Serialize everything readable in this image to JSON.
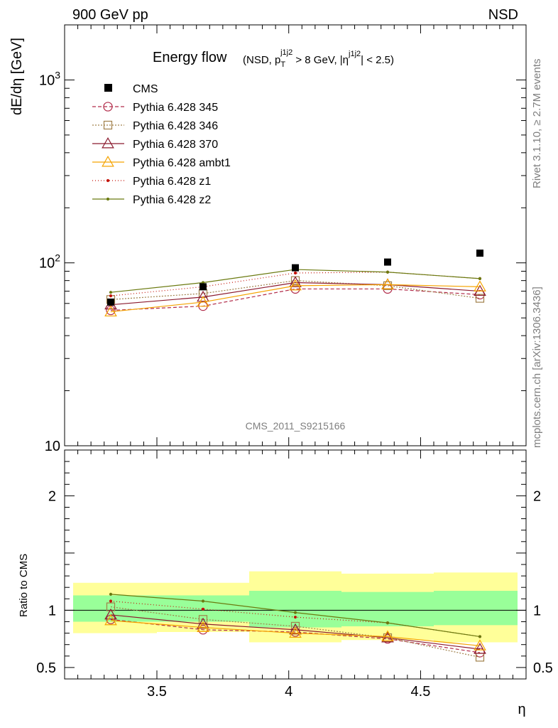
{
  "header": {
    "left": "900 GeV pp",
    "right": "NSD"
  },
  "side_labels": {
    "rivet": "Rivet 3.1.10, ≥ 2.7M events",
    "mcplots": "mcplots.cern.ch [arXiv:1306.3436]"
  },
  "watermark": "CMS_2011_S9215166",
  "chart_data": [
    {
      "type": "line",
      "title_main": "Energy flow",
      "title_sub": "(NSD, p_T^j1j2 > 8 GeV, |η^j1j2| < 2.5)",
      "ylabel": "dE/dη [GeV]",
      "yscale": "log",
      "ylim": [
        10,
        2000
      ],
      "xlim": [
        3.15,
        4.9
      ],
      "y_ticks": [
        {
          "value": 10,
          "label": "10"
        },
        {
          "value": 100,
          "label": "10^2"
        },
        {
          "value": 1000,
          "label": "10^3"
        }
      ],
      "x": [
        3.325,
        3.675,
        4.025,
        4.375,
        4.725
      ],
      "x_bin_edges": [
        3.15,
        3.5,
        3.85,
        4.2,
        4.55,
        4.9
      ],
      "data": {
        "name": "CMS",
        "values": [
          61,
          74,
          94,
          101,
          113
        ]
      },
      "series": [
        {
          "name": "Pythia 6.428 345",
          "values": [
            55,
            58,
            72,
            72,
            67
          ],
          "color": "#b22c4a",
          "dash": "5,3",
          "marker": "circle"
        },
        {
          "name": "Pythia 6.428 346",
          "values": [
            63,
            68,
            80,
            75,
            64
          ],
          "color": "#a0804a",
          "dash": "2,2",
          "marker": "square"
        },
        {
          "name": "Pythia 6.428 370",
          "values": [
            59,
            65,
            78,
            76,
            70
          ],
          "color": "#8b1a2e",
          "dash": "",
          "marker": "triangle"
        },
        {
          "name": "Pythia 6.428 ambt1",
          "values": [
            54,
            61,
            75,
            76,
            74
          ],
          "color": "#f5a300",
          "dash": "",
          "marker": "triangle"
        },
        {
          "name": "Pythia 6.428 z1",
          "values": [
            66,
            74,
            88,
            89,
            82
          ],
          "color": "#c3140a",
          "dash": "1,3",
          "marker": "dot"
        },
        {
          "name": "Pythia 6.428 z2",
          "values": [
            69,
            78,
            92,
            89,
            82
          ],
          "color": "#6b7a10",
          "dash": "",
          "marker": "dot"
        }
      ]
    },
    {
      "type": "line",
      "ylabel": "Ratio to CMS",
      "xlabel": "η",
      "ylim": [
        0.4,
        2.4
      ],
      "y_ticks": [
        {
          "value": 0.5,
          "label": "0.5"
        },
        {
          "value": 1,
          "label": "1"
        },
        {
          "value": 2,
          "label": "2"
        }
      ],
      "x_ticks": [
        {
          "value": 3.5,
          "label": "3.5"
        },
        {
          "value": 4,
          "label": "4"
        },
        {
          "value": 4.5,
          "label": "4.5"
        }
      ],
      "x": [
        3.325,
        3.675,
        4.025,
        4.375,
        4.725
      ],
      "bands": {
        "x_edges": [
          3.15,
          3.5,
          3.85,
          4.2,
          4.55,
          4.9
        ],
        "yellow": [
          [
            0.8,
            1.24
          ],
          [
            0.81,
            1.24
          ],
          [
            0.72,
            1.34
          ],
          [
            0.74,
            1.32
          ],
          [
            0.72,
            1.33
          ]
        ],
        "green": [
          [
            0.9,
            1.13
          ],
          [
            0.9,
            1.13
          ],
          [
            0.85,
            1.17
          ],
          [
            0.86,
            1.16
          ],
          [
            0.87,
            1.17
          ]
        ]
      },
      "series": [
        {
          "name": "Pythia 6.428 345",
          "values": [
            0.92,
            0.83,
            0.81,
            0.75,
            0.63
          ],
          "color": "#b22c4a",
          "dash": "5,3",
          "marker": "circle"
        },
        {
          "name": "Pythia 6.428 346",
          "values": [
            1.03,
            0.92,
            0.86,
            0.76,
            0.59
          ],
          "color": "#a0804a",
          "dash": "2,2",
          "marker": "square"
        },
        {
          "name": "Pythia 6.428 370",
          "values": [
            0.96,
            0.88,
            0.83,
            0.76,
            0.66
          ],
          "color": "#8b1a2e",
          "dash": "",
          "marker": "triangle"
        },
        {
          "name": "Pythia 6.428 ambt1",
          "values": [
            0.91,
            0.85,
            0.8,
            0.77,
            0.69
          ],
          "color": "#f5a300",
          "dash": "",
          "marker": "triangle"
        },
        {
          "name": "Pythia 6.428 z1",
          "values": [
            1.08,
            1.01,
            0.94,
            0.89,
            0.77
          ],
          "color": "#c3140a",
          "dash": "1,3",
          "marker": "dot"
        },
        {
          "name": "Pythia 6.428 z2",
          "values": [
            1.14,
            1.08,
            0.98,
            0.89,
            0.77
          ],
          "color": "#6b7a10",
          "dash": "",
          "marker": "dot"
        }
      ]
    }
  ]
}
